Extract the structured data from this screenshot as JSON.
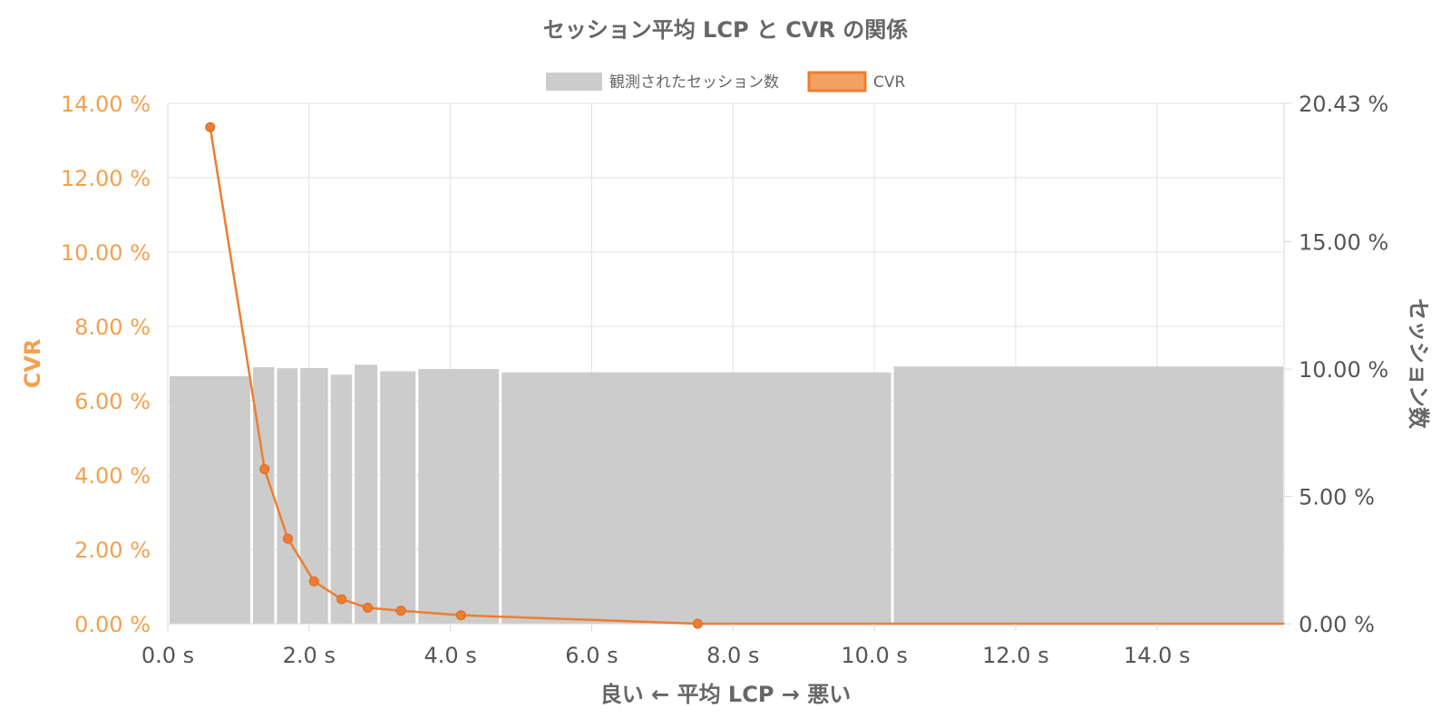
{
  "chart_data": {
    "type": "bar+line",
    "title": "セッション平均 LCP と CVR の関係",
    "xlabel": "良い ← 平均 LCP → 悪い",
    "ylabel_left": "CVR",
    "ylabel_right": "セッション数",
    "x_unit": "s",
    "xlim": [
      0,
      15.8
    ],
    "x_ticks": [
      "0.0 s",
      "2.0 s",
      "4.0 s",
      "6.0 s",
      "8.0 s",
      "10.0 s",
      "12.0 s",
      "14.0 s"
    ],
    "ylim_left": [
      0,
      14
    ],
    "y_ticks_left": [
      "0.00 %",
      "2.00 %",
      "4.00 %",
      "6.00 %",
      "8.00 %",
      "10.00 %",
      "12.00 %",
      "14.00 %"
    ],
    "ylim_right": [
      0,
      20.43
    ],
    "y_ticks_right": [
      "0.00 %",
      "5.00 %",
      "10.00 %",
      "15.00 %",
      "20.43 %"
    ],
    "grid": true,
    "legend_position": "top",
    "legend": [
      {
        "label": "観測されたセッション数",
        "color": "#cccccc",
        "border": "#cccccc"
      },
      {
        "label": "CVR",
        "color": "#f4a261",
        "border": "#ee7d30"
      }
    ],
    "colors": {
      "bar": "#cccccc",
      "line": "#ee7d30",
      "left_axis": "#f4a04e",
      "right_axis": "#555555",
      "grid": "#e2e2e2"
    },
    "session_bins": [
      {
        "start": 0.0,
        "end": 1.18,
        "value": 9.72
      },
      {
        "start": 1.18,
        "end": 1.52,
        "value": 10.07
      },
      {
        "start": 1.52,
        "end": 1.85,
        "value": 10.03
      },
      {
        "start": 1.85,
        "end": 2.28,
        "value": 10.04
      },
      {
        "start": 2.28,
        "end": 2.62,
        "value": 9.78
      },
      {
        "start": 2.62,
        "end": 2.98,
        "value": 10.17
      },
      {
        "start": 2.98,
        "end": 3.52,
        "value": 9.91
      },
      {
        "start": 3.52,
        "end": 4.7,
        "value": 10.0
      },
      {
        "start": 4.7,
        "end": 10.25,
        "value": 9.87
      },
      {
        "start": 10.25,
        "end": 15.8,
        "value": 10.1
      }
    ],
    "cvr_points": [
      {
        "x": 0.6,
        "y": 13.36
      },
      {
        "x": 1.37,
        "y": 4.16
      },
      {
        "x": 1.7,
        "y": 2.29
      },
      {
        "x": 2.07,
        "y": 1.14
      },
      {
        "x": 2.46,
        "y": 0.66
      },
      {
        "x": 2.83,
        "y": 0.43
      },
      {
        "x": 3.3,
        "y": 0.35
      },
      {
        "x": 4.15,
        "y": 0.23
      },
      {
        "x": 7.5,
        "y": 0.0
      },
      {
        "x": 15.8,
        "y": 0.0
      }
    ],
    "cvr_marker_count": 9
  }
}
